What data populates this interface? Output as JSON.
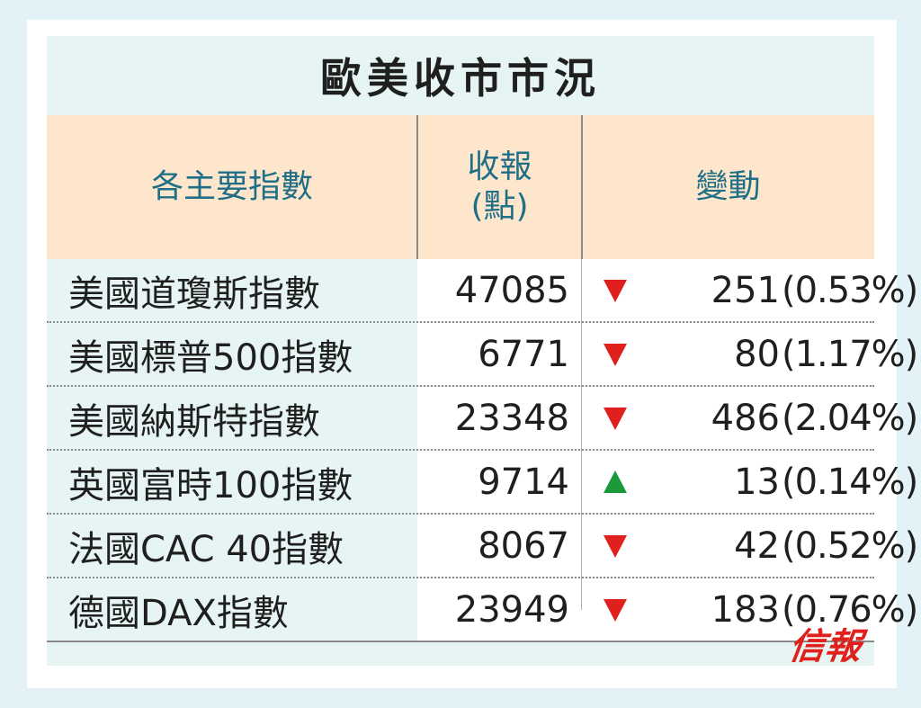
{
  "title": "歐美收市市況",
  "header": {
    "col1": "各主要指數",
    "col2_line1": "收報",
    "col2_line2": "(點)",
    "col3": "變動"
  },
  "rows": [
    {
      "name": "美國道瓊斯指數",
      "close": "47085",
      "direction": "down",
      "change": "251",
      "pct": "(0.53%)"
    },
    {
      "name": "美國標普500指數",
      "close": "6771",
      "direction": "down",
      "change": "80",
      "pct": "(1.17%)"
    },
    {
      "name": "美國納斯特指數",
      "close": "23348",
      "direction": "down",
      "change": "486",
      "pct": "(2.04%)"
    },
    {
      "name": "英國富時100指數",
      "close": "9714",
      "direction": "up",
      "change": "13",
      "pct": "(0.14%)"
    },
    {
      "name": "法國CAC 40指數",
      "close": "8067",
      "direction": "down",
      "change": "42",
      "pct": "(0.52%)"
    },
    {
      "name": "德國DAX指數",
      "close": "23949",
      "direction": "down",
      "change": "183",
      "pct": "(0.76%)"
    }
  ],
  "colors": {
    "down": "#e0201c",
    "up": "#1a9a3a",
    "header_text": "#1f6f86",
    "header_bg": "#fde6cc",
    "panel_bg": "#e6f4f3",
    "page_bg": "#e3f2f7"
  },
  "icons": {
    "down": "triangle-down-icon",
    "up": "triangle-up-icon"
  },
  "logo": "信報"
}
